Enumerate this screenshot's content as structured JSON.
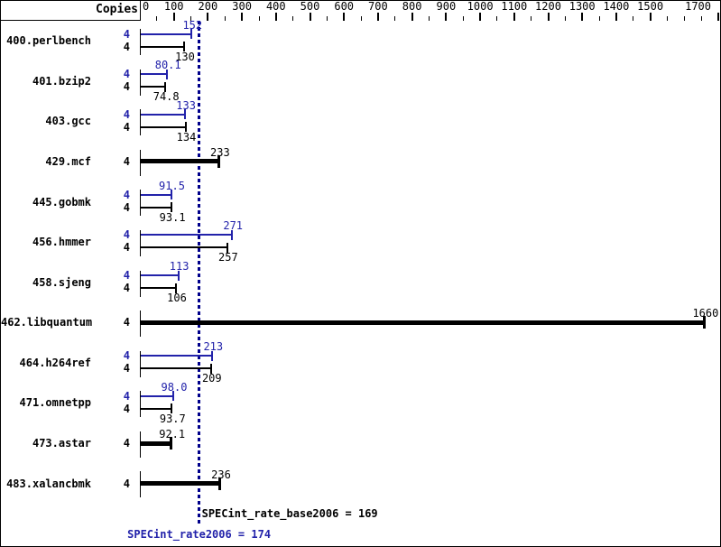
{
  "header": {
    "copies_label": "Copies"
  },
  "chart_data": {
    "type": "bar",
    "orientation": "horizontal",
    "copies_column_header": "Copies",
    "axis": {
      "min": 0,
      "max": 1700,
      "labeled_ticks": [
        0,
        100,
        200,
        300,
        400,
        500,
        600,
        700,
        800,
        900,
        1000,
        1100,
        1200,
        1300,
        1400,
        1500,
        1700
      ],
      "minor_tick_step": 50
    },
    "benchmarks": [
      {
        "name": "400.perlbench",
        "copies": "4",
        "peak": "152",
        "base": "130"
      },
      {
        "name": "401.bzip2",
        "copies": "4",
        "peak": "80.1",
        "base": "74.8"
      },
      {
        "name": "403.gcc",
        "copies": "4",
        "peak": "133",
        "base": "134"
      },
      {
        "name": "429.mcf",
        "copies": "4",
        "base": "233"
      },
      {
        "name": "445.gobmk",
        "copies": "4",
        "peak": "91.5",
        "base": "93.1"
      },
      {
        "name": "456.hmmer",
        "copies": "4",
        "peak": "271",
        "base": "257"
      },
      {
        "name": "458.sjeng",
        "copies": "4",
        "peak": "113",
        "base": "106"
      },
      {
        "name": "462.libquantum",
        "copies": "4",
        "base": "1660"
      },
      {
        "name": "464.h264ref",
        "copies": "4",
        "peak": "213",
        "base": "209"
      },
      {
        "name": "471.omnetpp",
        "copies": "4",
        "peak": "98.0",
        "base": "93.7"
      },
      {
        "name": "473.astar",
        "copies": "4",
        "base": "92.1"
      },
      {
        "name": "483.xalancbmk",
        "copies": "4",
        "base": "236"
      }
    ],
    "reference_line": {
      "value": 174
    },
    "summary": {
      "base_metric": "SPECint_rate_base2006",
      "base_value": "169",
      "peak_metric": "SPECint_rate2006",
      "peak_value": "174"
    }
  },
  "summary": {
    "base_text": "SPECint_rate_base2006 = 169",
    "peak_text": "SPECint_rate2006 = 174"
  },
  "colors": {
    "peak_blue": "#2222aa",
    "base_black": "#000000",
    "reference_line": "#00008b",
    "background": "#ffffff"
  }
}
